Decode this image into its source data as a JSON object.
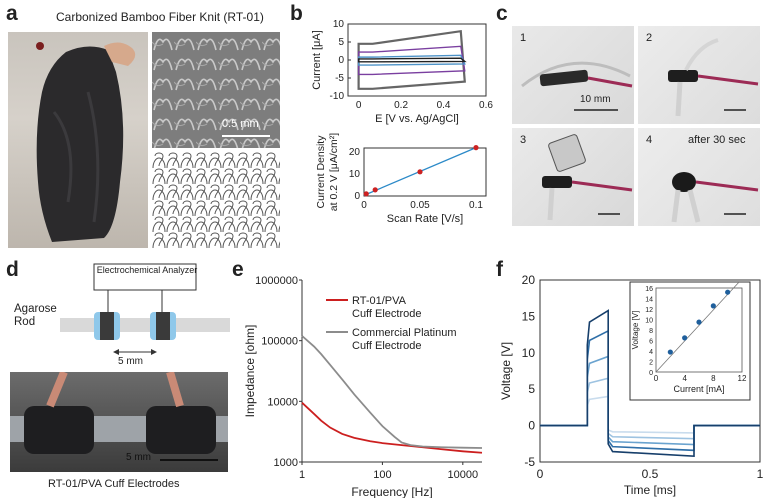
{
  "panel_letters": [
    "a",
    "b",
    "c",
    "d",
    "e",
    "f"
  ],
  "a": {
    "title": "Carbonized Bamboo Fiber Knit (RT-01)",
    "sem_scale": "0.5 mm"
  },
  "c": {
    "step1": "1",
    "step2": "2",
    "step3": "3",
    "step4": "4",
    "after_text": "after 30 sec",
    "scale": "10 mm"
  },
  "d": {
    "analyzer": "Electrochemical Analyzer",
    "rod": "Agarose Rod",
    "gap": "5 mm",
    "photo_scale": "5 mm",
    "caption": "RT-01/PVA Cuff Electrodes"
  },
  "chart_data": [
    {
      "panel": "b-top",
      "type": "line",
      "xlabel": "E [V vs. Ag/AgCl]",
      "ylabel": "Current [μA]",
      "xlim": [
        -0.05,
        0.6
      ],
      "ylim": [
        -10,
        10
      ],
      "xticks": [
        "0",
        "0.2",
        "0.4",
        "0.6"
      ],
      "yticks": [
        "-10",
        "-5",
        "0",
        "5",
        "10"
      ],
      "series_colors": [
        "#666666",
        "#7a3fa0",
        "#4d93c8",
        "#222222"
      ],
      "series": [
        {
          "values_upper": [
            4.5,
            8
          ],
          "values_lower": [
            -8,
            -6
          ]
        },
        {
          "values_upper": [
            2.2,
            3.8
          ],
          "values_lower": [
            -4,
            -3
          ]
        },
        {
          "values_upper": [
            0.8,
            1.3
          ],
          "values_lower": [
            -1.4,
            -1.1
          ]
        },
        {
          "values_upper": [
            0.3,
            0.5
          ],
          "values_lower": [
            -0.5,
            -0.4
          ]
        }
      ]
    },
    {
      "panel": "b-bottom",
      "type": "scatter",
      "xlabel": "Scan Rate [V/s]",
      "ylabel_line1": "Current Density",
      "ylabel_line2": "at 0.2 V [μA/cm²]",
      "xlim": [
        0,
        0.1
      ],
      "ylim": [
        0,
        20
      ],
      "xticks": [
        "0",
        "0.05",
        "0.1"
      ],
      "yticks": [
        "0",
        "10",
        "20"
      ],
      "x": [
        0.002,
        0.01,
        0.05,
        0.1
      ],
      "y": [
        1.0,
        2.8,
        11.0,
        22.0
      ],
      "fit_color": "#2c8ac8",
      "point_color": "#cc2222"
    },
    {
      "panel": "e",
      "type": "line",
      "xlabel": "Frequency [Hz]",
      "ylabel": "Impedance [ohm]",
      "xscale": "log",
      "yscale": "log",
      "xticks": [
        "1",
        "100",
        "10000"
      ],
      "yticks": [
        "1000",
        "10000",
        "100000",
        "1000000"
      ],
      "legend_placement": "top-right",
      "series": [
        {
          "name": "RT-01/PVA Cuff Electrode",
          "color": "#cc1f1f",
          "x": [
            1,
            2,
            3,
            5,
            10,
            20,
            50,
            100,
            300,
            1000,
            3000,
            10000,
            30000
          ],
          "y": [
            9500,
            6200,
            4800,
            3700,
            2900,
            2500,
            2200,
            2050,
            1900,
            1750,
            1620,
            1500,
            1420
          ]
        },
        {
          "name": "Commercial Platinum Cuff Electrode",
          "color": "#8c8c8c",
          "x": [
            1,
            2,
            3,
            5,
            10,
            20,
            50,
            100,
            200,
            300,
            500,
            1000,
            3000,
            10000,
            30000
          ],
          "y": [
            120000,
            80000,
            60000,
            40000,
            23000,
            13000,
            6500,
            3900,
            2600,
            2100,
            1900,
            1800,
            1750,
            1720,
            1700
          ]
        }
      ]
    },
    {
      "panel": "f",
      "type": "line",
      "xlabel": "Time [ms]",
      "ylabel": "Voltage [V]",
      "xlim": [
        0,
        1
      ],
      "ylim": [
        -5,
        20
      ],
      "xticks": [
        "0",
        "0.5",
        "1"
      ],
      "yticks": [
        "-5",
        "0",
        "5",
        "10",
        "15",
        "20"
      ],
      "series_colors": [
        "#c9dced",
        "#9ec3e1",
        "#6aa3cf",
        "#2f6fa8",
        "#173f6b"
      ],
      "series": [
        {
          "plateau": 4.0,
          "negative": -1.0
        },
        {
          "plateau": 6.5,
          "negative": -1.8
        },
        {
          "plateau": 9.5,
          "negative": -2.6
        },
        {
          "plateau": 13.0,
          "negative": -3.4
        },
        {
          "plateau": 15.8,
          "negative": -4.2
        }
      ],
      "inset": {
        "type": "scatter",
        "xlabel": "Current [mA]",
        "ylabel": "Voltage [V]",
        "xlim": [
          0,
          12
        ],
        "ylim": [
          0,
          16
        ],
        "xticks": [
          "0",
          "4",
          "8",
          "12"
        ],
        "yticks": [
          "0",
          "2",
          "4",
          "6",
          "8",
          "10",
          "12",
          "14",
          "16"
        ],
        "x": [
          2,
          4,
          6,
          8,
          10
        ],
        "y": [
          3.8,
          6.5,
          9.5,
          12.6,
          15.2
        ],
        "point_color": "#1f5f9c"
      }
    }
  ]
}
